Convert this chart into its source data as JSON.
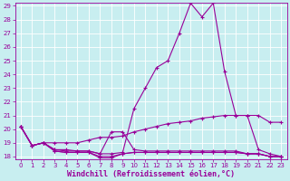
{
  "xlabel": "Windchill (Refroidissement éolien,°C)",
  "background_color": "#c8eef0",
  "grid_color": "#ffffff",
  "line_color": "#990099",
  "xlim": [
    -0.5,
    23.5
  ],
  "ylim": [
    17.8,
    29.2
  ],
  "yticks": [
    18,
    19,
    20,
    21,
    22,
    23,
    24,
    25,
    26,
    27,
    28,
    29
  ],
  "xticks": [
    0,
    1,
    2,
    3,
    4,
    5,
    6,
    7,
    8,
    9,
    10,
    11,
    12,
    13,
    14,
    15,
    16,
    17,
    18,
    19,
    20,
    21,
    22,
    23
  ],
  "lines": [
    {
      "x": [
        0,
        1,
        2,
        3,
        4,
        5,
        6,
        7,
        8,
        9,
        10,
        11,
        12,
        13,
        14,
        15,
        16,
        17,
        18,
        19,
        20,
        21,
        22,
        23
      ],
      "y": [
        20.2,
        18.8,
        19.0,
        18.5,
        18.5,
        18.4,
        18.4,
        18.2,
        18.2,
        18.3,
        21.5,
        23.0,
        24.5,
        25.0,
        27.0,
        29.2,
        28.2,
        29.2,
        24.2,
        21.0,
        21.0,
        18.5,
        18.2,
        18.0
      ]
    },
    {
      "x": [
        0,
        1,
        2,
        3,
        4,
        5,
        6,
        7,
        8,
        9,
        10,
        11,
        12,
        13,
        14,
        15,
        16,
        17,
        18,
        19,
        20,
        21,
        22,
        23
      ],
      "y": [
        20.2,
        18.8,
        19.0,
        19.0,
        19.0,
        19.0,
        19.2,
        19.4,
        19.4,
        19.5,
        19.8,
        20.0,
        20.2,
        20.4,
        20.5,
        20.6,
        20.8,
        20.9,
        21.0,
        21.0,
        21.0,
        21.0,
        20.5,
        20.5
      ]
    },
    {
      "x": [
        0,
        1,
        2,
        3,
        4,
        5,
        6,
        7,
        8,
        9,
        10,
        11,
        12,
        13,
        14,
        15,
        16,
        17,
        18,
        19,
        20,
        21,
        22,
        23
      ],
      "y": [
        20.2,
        18.8,
        19.0,
        18.5,
        18.4,
        18.4,
        18.4,
        18.2,
        19.8,
        19.8,
        18.5,
        18.4,
        18.4,
        18.4,
        18.4,
        18.4,
        18.4,
        18.4,
        18.4,
        18.4,
        18.2,
        18.2,
        18.0,
        18.0
      ]
    },
    {
      "x": [
        0,
        1,
        2,
        3,
        4,
        5,
        6,
        7,
        8,
        9,
        10,
        11,
        12,
        13,
        14,
        15,
        16,
        17,
        18,
        19,
        20,
        21,
        22,
        23
      ],
      "y": [
        20.2,
        18.8,
        19.0,
        18.4,
        18.3,
        18.3,
        18.3,
        18.0,
        18.0,
        18.2,
        18.3,
        18.3,
        18.3,
        18.3,
        18.3,
        18.3,
        18.3,
        18.3,
        18.3,
        18.3,
        18.2,
        18.2,
        18.0,
        18.0
      ]
    },
    {
      "x": [
        0,
        1,
        2,
        3,
        4,
        5,
        6,
        7,
        8,
        9,
        10,
        11,
        12,
        13,
        14,
        15,
        16,
        17,
        18,
        19,
        20,
        21,
        22,
        23
      ],
      "y": [
        20.2,
        18.8,
        19.0,
        18.4,
        18.3,
        18.3,
        18.3,
        17.9,
        17.9,
        18.2,
        18.3,
        18.3,
        18.3,
        18.3,
        18.3,
        18.3,
        18.3,
        18.3,
        18.3,
        18.3,
        18.2,
        18.2,
        18.0,
        18.0
      ]
    }
  ],
  "marker": "+",
  "markersize": 3.5,
  "markeredgewidth": 0.8,
  "linewidth": 0.8,
  "tick_fontsize": 5.0,
  "label_fontsize": 6.0
}
